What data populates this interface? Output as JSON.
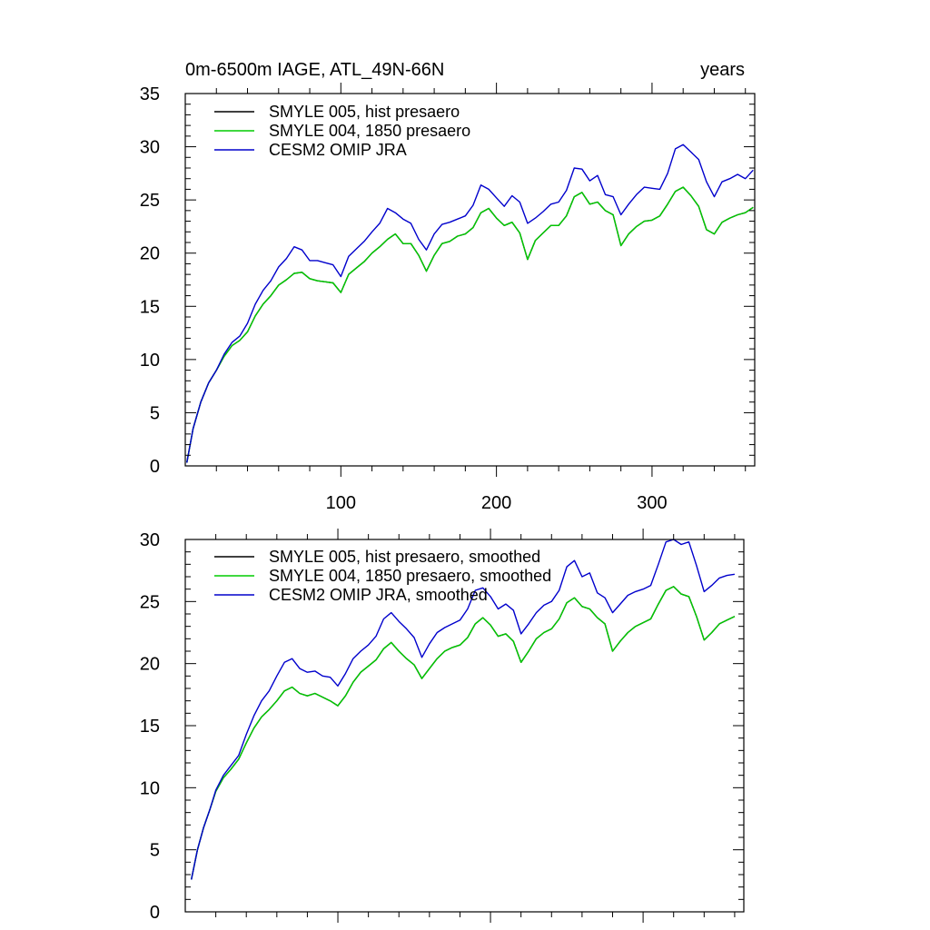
{
  "chart_data": [
    {
      "type": "line",
      "title_left": "0m-6500m IAGE, ATL_49N-66N",
      "title_right": "years",
      "xlabel": "",
      "ylabel": "",
      "xlim": [
        0,
        366
      ],
      "ylim": [
        0,
        35
      ],
      "x_ticks": [
        100,
        200,
        300
      ],
      "y_ticks": [
        0,
        5,
        10,
        15,
        20,
        25,
        30,
        35
      ],
      "grid": false,
      "legend_position": "top-left",
      "x": [
        1,
        5,
        10,
        15,
        20,
        25,
        30,
        35,
        40,
        45,
        50,
        55,
        60,
        65,
        70,
        75,
        80,
        85,
        90,
        95,
        100,
        105,
        110,
        115,
        120,
        125,
        130,
        135,
        140,
        145,
        150,
        155,
        160,
        165,
        170,
        175,
        180,
        185,
        190,
        195,
        200,
        205,
        210,
        215,
        220,
        225,
        230,
        235,
        240,
        245,
        250,
        255,
        260,
        265,
        270,
        275,
        280,
        285,
        290,
        295,
        300,
        305,
        310,
        315,
        320,
        325,
        330,
        335,
        340,
        345,
        350,
        355,
        360,
        365
      ],
      "series": [
        {
          "name": "SMYLE 005, hist presaero",
          "color": "#000000",
          "values": [
            0.3,
            3.5,
            6.0,
            7.8,
            9.0,
            10.3,
            11.3,
            11.8,
            12.6,
            14.1,
            15.2,
            16.0,
            17.0,
            17.5,
            18.1,
            18.2,
            17.6,
            17.4,
            17.3,
            17.2,
            16.3,
            18.0,
            18.6,
            19.2,
            20.0,
            20.6,
            21.3,
            21.8,
            20.9,
            20.9,
            19.8,
            18.3,
            19.8,
            20.9,
            21.1,
            21.6,
            21.8,
            22.4,
            23.8,
            24.2,
            23.3,
            22.6,
            22.9,
            21.9,
            19.4,
            21.2,
            21.9,
            22.6,
            22.6,
            23.5,
            25.3,
            25.7,
            24.6,
            24.8,
            24.0,
            23.6,
            20.7,
            21.8,
            22.5,
            23.0,
            23.1,
            23.5,
            24.6,
            25.8,
            26.2,
            25.4,
            24.4,
            22.2,
            21.8,
            22.9,
            23.3,
            23.6,
            23.8,
            24.3
          ]
        },
        {
          "name": "SMYLE 004, 1850 presaero",
          "color": "#00cc00",
          "values": [
            0.3,
            3.5,
            6.0,
            7.8,
            9.0,
            10.3,
            11.3,
            11.8,
            12.6,
            14.1,
            15.2,
            16.0,
            17.0,
            17.5,
            18.1,
            18.2,
            17.6,
            17.4,
            17.3,
            17.2,
            16.3,
            18.0,
            18.6,
            19.2,
            20.0,
            20.6,
            21.3,
            21.8,
            20.9,
            20.9,
            19.8,
            18.3,
            19.8,
            20.9,
            21.1,
            21.6,
            21.8,
            22.4,
            23.8,
            24.2,
            23.3,
            22.6,
            22.9,
            21.9,
            19.4,
            21.2,
            21.9,
            22.6,
            22.6,
            23.5,
            25.3,
            25.7,
            24.6,
            24.8,
            24.0,
            23.6,
            20.7,
            21.8,
            22.5,
            23.0,
            23.1,
            23.5,
            24.6,
            25.8,
            26.2,
            25.4,
            24.4,
            22.2,
            21.8,
            22.9,
            23.3,
            23.6,
            23.8,
            24.3
          ]
        },
        {
          "name": "CESM2 OMIP JRA",
          "color": "#0000cc",
          "values": [
            0.3,
            3.5,
            6.0,
            7.8,
            9.0,
            10.5,
            11.6,
            12.2,
            13.4,
            15.2,
            16.5,
            17.4,
            18.7,
            19.5,
            20.6,
            20.3,
            19.3,
            19.3,
            19.1,
            18.9,
            17.8,
            19.7,
            20.4,
            21.1,
            22.0,
            22.8,
            24.2,
            23.8,
            23.2,
            22.8,
            21.3,
            20.3,
            21.8,
            22.7,
            22.9,
            23.2,
            23.5,
            24.5,
            26.4,
            26.0,
            25.2,
            24.4,
            25.4,
            24.8,
            22.8,
            23.3,
            23.9,
            24.6,
            24.8,
            25.9,
            28.0,
            27.9,
            26.8,
            27.3,
            25.5,
            25.3,
            23.6,
            24.6,
            25.5,
            26.2,
            26.1,
            26.0,
            27.5,
            29.8,
            30.2,
            29.5,
            28.8,
            26.7,
            25.3,
            26.7,
            27.0,
            27.4,
            27.0,
            27.8
          ]
        }
      ]
    },
    {
      "type": "line",
      "xlabel": "",
      "ylabel": "",
      "xlim": [
        0,
        366
      ],
      "ylim": [
        0,
        30
      ],
      "x_ticks": [
        100,
        200,
        300
      ],
      "y_ticks": [
        0,
        5,
        10,
        15,
        20,
        25,
        30
      ],
      "grid": false,
      "legend_position": "top-left",
      "x": [
        4,
        8,
        12,
        16,
        20,
        25,
        30,
        35,
        40,
        45,
        50,
        55,
        60,
        65,
        70,
        75,
        80,
        85,
        90,
        95,
        100,
        105,
        110,
        115,
        120,
        125,
        130,
        135,
        140,
        145,
        150,
        155,
        160,
        165,
        170,
        175,
        180,
        185,
        190,
        195,
        200,
        205,
        210,
        215,
        220,
        225,
        230,
        235,
        240,
        245,
        250,
        255,
        260,
        265,
        270,
        275,
        280,
        285,
        290,
        295,
        300,
        305,
        310,
        315,
        320,
        325,
        330,
        335,
        340,
        345,
        350,
        355,
        360
      ],
      "series": [
        {
          "name": "SMYLE 005, hist presaero, smoothed",
          "color": "#000000",
          "values": [
            2.6,
            5.0,
            6.8,
            8.2,
            9.7,
            10.8,
            11.5,
            12.3,
            13.6,
            14.8,
            15.7,
            16.3,
            17.0,
            17.8,
            18.1,
            17.6,
            17.4,
            17.6,
            17.3,
            17.0,
            16.6,
            17.4,
            18.5,
            19.3,
            19.8,
            20.3,
            21.2,
            21.7,
            21.0,
            20.4,
            19.9,
            18.8,
            19.6,
            20.4,
            21.0,
            21.3,
            21.5,
            22.1,
            23.2,
            23.7,
            23.1,
            22.2,
            22.4,
            21.8,
            20.1,
            21.0,
            22.0,
            22.5,
            22.8,
            23.6,
            24.9,
            25.3,
            24.6,
            24.4,
            23.7,
            23.2,
            21.0,
            21.8,
            22.5,
            23.0,
            23.3,
            23.6,
            24.8,
            25.9,
            26.2,
            25.6,
            25.4,
            23.8,
            21.9,
            22.5,
            23.2,
            23.5,
            23.8
          ]
        },
        {
          "name": "SMYLE 004, 1850 presaero, smoothed",
          "color": "#00cc00",
          "values": [
            2.6,
            5.0,
            6.8,
            8.2,
            9.7,
            10.8,
            11.5,
            12.3,
            13.6,
            14.8,
            15.7,
            16.3,
            17.0,
            17.8,
            18.1,
            17.6,
            17.4,
            17.6,
            17.3,
            17.0,
            16.6,
            17.4,
            18.5,
            19.3,
            19.8,
            20.3,
            21.2,
            21.7,
            21.0,
            20.4,
            19.9,
            18.8,
            19.6,
            20.4,
            21.0,
            21.3,
            21.5,
            22.1,
            23.2,
            23.7,
            23.1,
            22.2,
            22.4,
            21.8,
            20.1,
            21.0,
            22.0,
            22.5,
            22.8,
            23.6,
            24.9,
            25.3,
            24.6,
            24.4,
            23.7,
            23.2,
            21.0,
            21.8,
            22.5,
            23.0,
            23.3,
            23.6,
            24.8,
            25.9,
            26.2,
            25.6,
            25.4,
            23.8,
            21.9,
            22.5,
            23.2,
            23.5,
            23.8
          ]
        },
        {
          "name": "CESM2 OMIP JRA, smoothed",
          "color": "#0000cc",
          "values": [
            2.6,
            5.0,
            6.8,
            8.2,
            9.8,
            11.0,
            11.8,
            12.6,
            14.3,
            15.8,
            17.0,
            17.8,
            19.0,
            20.1,
            20.4,
            19.6,
            19.3,
            19.4,
            19.0,
            18.9,
            18.2,
            19.2,
            20.4,
            21.0,
            21.5,
            22.2,
            23.6,
            24.1,
            23.4,
            22.8,
            22.1,
            20.5,
            21.6,
            22.5,
            22.9,
            23.2,
            23.5,
            24.4,
            25.9,
            26.1,
            25.4,
            24.4,
            24.8,
            24.3,
            22.4,
            23.2,
            24.1,
            24.7,
            25.0,
            25.9,
            27.8,
            28.3,
            27.0,
            27.3,
            25.7,
            25.3,
            24.1,
            24.8,
            25.5,
            25.8,
            26.0,
            26.3,
            28.0,
            29.8,
            30.0,
            29.6,
            29.8,
            27.9,
            25.8,
            26.3,
            26.9,
            27.1,
            27.2
          ]
        }
      ]
    }
  ]
}
